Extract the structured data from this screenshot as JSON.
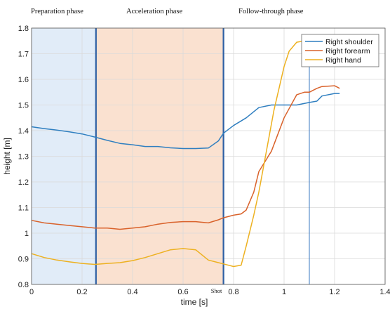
{
  "chart_data": {
    "type": "line",
    "title": "",
    "xlabel": "time [s]",
    "ylabel": "height [m]",
    "xlim": [
      0,
      1.4
    ],
    "ylim": [
      0.8,
      1.8
    ],
    "xticks": [
      "0",
      "0.2",
      "0.4",
      "0.6",
      "0.8",
      "1",
      "1.2",
      "1.4"
    ],
    "yticks": [
      "0.8",
      "0.9",
      "1",
      "1.1",
      "1.2",
      "1.3",
      "1.4",
      "1.5",
      "1.6",
      "1.7",
      "1.8"
    ],
    "grid": true,
    "legend_position": "top-right",
    "phases": [
      {
        "label": "Preparation phase",
        "start": 0,
        "end": 0.255,
        "color": "#dce9f7"
      },
      {
        "label": "Acceleration phase",
        "start": 0.255,
        "end": 0.76,
        "color": "#f9dcc8"
      },
      {
        "label": "Follow-through phase",
        "start": 0.76,
        "end": null,
        "color": ""
      }
    ],
    "phase_line_color": "#2e5fa3",
    "shot_label": "Shot",
    "marker_line": {
      "x": 1.1,
      "color": "#3a78c2"
    },
    "series": [
      {
        "name": "Right shoulder",
        "color": "#2f7fc0",
        "x": [
          0,
          0.05,
          0.1,
          0.15,
          0.2,
          0.25,
          0.3,
          0.35,
          0.4,
          0.45,
          0.5,
          0.55,
          0.6,
          0.65,
          0.7,
          0.74,
          0.76,
          0.8,
          0.85,
          0.9,
          0.95,
          1.0,
          1.05,
          1.1,
          1.13,
          1.15,
          1.2,
          1.22
        ],
        "y": [
          1.415,
          1.408,
          1.402,
          1.395,
          1.387,
          1.375,
          1.362,
          1.35,
          1.345,
          1.338,
          1.338,
          1.333,
          1.33,
          1.33,
          1.332,
          1.36,
          1.39,
          1.42,
          1.45,
          1.49,
          1.5,
          1.5,
          1.5,
          1.51,
          1.515,
          1.535,
          1.545,
          1.545
        ]
      },
      {
        "name": "Right forearm",
        "color": "#d9622b",
        "x": [
          0,
          0.05,
          0.1,
          0.15,
          0.2,
          0.25,
          0.3,
          0.35,
          0.4,
          0.45,
          0.5,
          0.55,
          0.6,
          0.65,
          0.7,
          0.74,
          0.76,
          0.8,
          0.83,
          0.85,
          0.88,
          0.9,
          0.95,
          1.0,
          1.05,
          1.08,
          1.1,
          1.13,
          1.15,
          1.2,
          1.22
        ],
        "y": [
          1.05,
          1.04,
          1.035,
          1.03,
          1.025,
          1.02,
          1.02,
          1.015,
          1.02,
          1.025,
          1.035,
          1.042,
          1.045,
          1.045,
          1.04,
          1.052,
          1.06,
          1.07,
          1.075,
          1.09,
          1.16,
          1.24,
          1.32,
          1.45,
          1.54,
          1.55,
          1.55,
          1.565,
          1.572,
          1.575,
          1.565
        ]
      },
      {
        "name": "Right hand",
        "color": "#edb120",
        "x": [
          0,
          0.05,
          0.1,
          0.15,
          0.2,
          0.25,
          0.3,
          0.35,
          0.4,
          0.45,
          0.5,
          0.55,
          0.6,
          0.65,
          0.7,
          0.74,
          0.76,
          0.8,
          0.83,
          0.85,
          0.88,
          0.9,
          0.93,
          0.96,
          1.0,
          1.02,
          1.05,
          1.08
        ],
        "y": [
          0.92,
          0.905,
          0.895,
          0.888,
          0.882,
          0.878,
          0.882,
          0.885,
          0.893,
          0.905,
          0.92,
          0.935,
          0.94,
          0.935,
          0.895,
          0.885,
          0.88,
          0.87,
          0.875,
          0.95,
          1.07,
          1.16,
          1.32,
          1.48,
          1.65,
          1.71,
          1.745,
          1.75
        ]
      }
    ]
  }
}
